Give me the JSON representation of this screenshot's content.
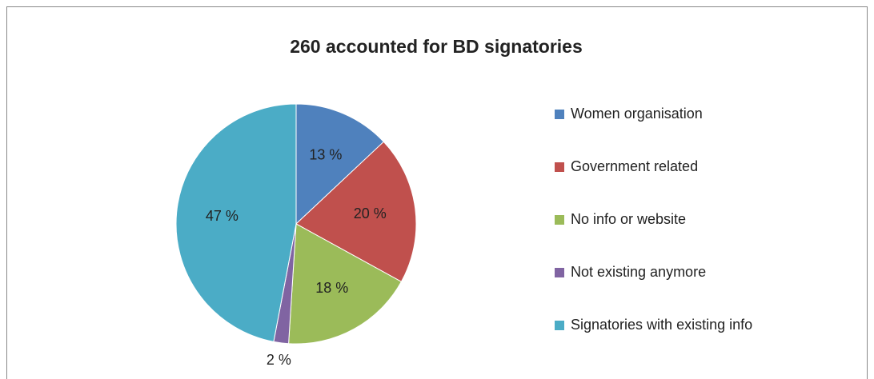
{
  "chart_data": {
    "type": "pie",
    "title": "260 accounted for BD signatories",
    "categories": [
      "Women organisation",
      "Government related",
      "No info or website",
      "Not existing anymore",
      "Signatories with existing info"
    ],
    "values": [
      13,
      20,
      18,
      2,
      47
    ],
    "value_labels": [
      "13 %",
      "20 %",
      "18 %",
      "2 %",
      "47 %"
    ],
    "colors": [
      "#4f81bd",
      "#c0504d",
      "#9bbb59",
      "#8064a2",
      "#4bacc6"
    ],
    "legend": "right"
  }
}
